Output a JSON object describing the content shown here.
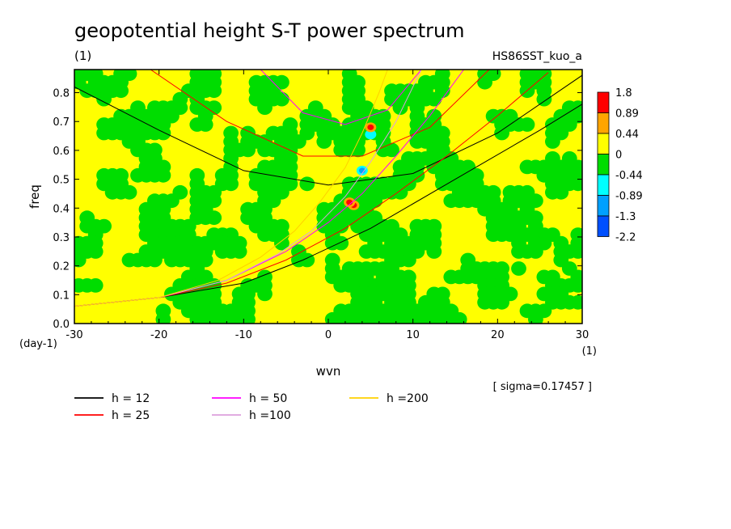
{
  "chart_data": {
    "type": "heatmap",
    "title": "geopotential height S-T power spectrum",
    "subtitle_left": "(1)",
    "subtitle_right": "HS86SST_kuo_a",
    "xlabel": "wvn",
    "ylabel": "freq",
    "x_unit": "(1)",
    "y_unit": "(day-1)",
    "xlim": [
      -30,
      30
    ],
    "ylim": [
      0,
      0.88
    ],
    "x_ticks": [
      "-30",
      "-20",
      "-10",
      "0",
      "10",
      "20",
      "30"
    ],
    "x_tick_values": [
      -30,
      -20,
      -10,
      0,
      10,
      20,
      30
    ],
    "y_ticks": [
      "0.0",
      "0.1",
      "0.2",
      "0.3",
      "0.4",
      "0.5",
      "0.6",
      "0.7",
      "0.8"
    ],
    "y_tick_values": [
      0.0,
      0.1,
      0.2,
      0.3,
      0.4,
      0.5,
      0.6,
      0.7,
      0.8
    ],
    "colorbar": {
      "labels": [
        "1.8",
        "0.89",
        "0.44",
        "0",
        "-0.44",
        "-0.89",
        "-1.3",
        "-2.2"
      ],
      "colors": [
        "#ff0000",
        "#ffa500",
        "#ffff00",
        "#00dd00",
        "#00ffff",
        "#00a0ff",
        "#0050ff"
      ]
    },
    "note": "[ sigma=0.17457 ]",
    "legend": [
      {
        "label": "h = 12",
        "color": "#000000"
      },
      {
        "label": "h = 25",
        "color": "#ff0000"
      },
      {
        "label": "h = 50",
        "color": "#ff00ff"
      },
      {
        "label": "h =100",
        "color": "#dda0dd"
      },
      {
        "label": "h =200",
        "color": "#ffd000"
      }
    ],
    "dispersion_curves": [
      {
        "h": 12,
        "color": "#000000",
        "points": [
          [
            -30,
            0.06
          ],
          [
            -20,
            0.09
          ],
          [
            -10,
            0.14
          ],
          [
            -3,
            0.22
          ],
          [
            5,
            0.33
          ],
          [
            15,
            0.5
          ],
          [
            25,
            0.67
          ],
          [
            30,
            0.76
          ]
        ]
      },
      {
        "h": 12,
        "color": "#000000",
        "points": [
          [
            -30,
            0.82
          ],
          [
            -20,
            0.67
          ],
          [
            -10,
            0.53
          ],
          [
            0,
            0.48
          ],
          [
            10,
            0.52
          ],
          [
            20,
            0.66
          ],
          [
            30,
            0.86
          ]
        ]
      },
      {
        "h": 25,
        "color": "#ff0000",
        "points": [
          [
            -30,
            0.06
          ],
          [
            -20,
            0.09
          ],
          [
            -12,
            0.14
          ],
          [
            -5,
            0.22
          ],
          [
            2,
            0.33
          ],
          [
            8,
            0.45
          ],
          [
            14,
            0.58
          ],
          [
            20,
            0.72
          ],
          [
            26,
            0.87
          ]
        ]
      },
      {
        "h": 25,
        "color": "#ff0000",
        "points": [
          [
            -21,
            0.88
          ],
          [
            -12,
            0.7
          ],
          [
            -3,
            0.58
          ],
          [
            4,
            0.58
          ],
          [
            12,
            0.68
          ],
          [
            19,
            0.88
          ]
        ]
      },
      {
        "h": 50,
        "color": "#ff00ff",
        "points": [
          [
            -30,
            0.06
          ],
          [
            -20,
            0.09
          ],
          [
            -12,
            0.15
          ],
          [
            -5,
            0.25
          ],
          [
            0,
            0.35
          ],
          [
            4,
            0.45
          ],
          [
            8,
            0.58
          ],
          [
            12,
            0.72
          ],
          [
            16,
            0.88
          ]
        ]
      },
      {
        "h": 50,
        "color": "#ff00ff",
        "points": [
          [
            -8,
            0.88
          ],
          [
            -3,
            0.73
          ],
          [
            2,
            0.69
          ],
          [
            7,
            0.74
          ],
          [
            11,
            0.88
          ]
        ]
      },
      {
        "h": 100,
        "color": "#dda0dd",
        "points": [
          [
            -30,
            0.06
          ],
          [
            -20,
            0.09
          ],
          [
            -12,
            0.15
          ],
          [
            -6,
            0.24
          ],
          [
            -2,
            0.32
          ],
          [
            2,
            0.44
          ],
          [
            5,
            0.56
          ],
          [
            8,
            0.7
          ],
          [
            11,
            0.88
          ]
        ]
      },
      {
        "h": 200,
        "color": "#ffd000",
        "points": [
          [
            -30,
            0.06
          ],
          [
            -20,
            0.09
          ],
          [
            -13,
            0.15
          ],
          [
            -8,
            0.23
          ],
          [
            -4,
            0.32
          ],
          [
            -1,
            0.42
          ],
          [
            2,
            0.54
          ],
          [
            4,
            0.66
          ],
          [
            6,
            0.8
          ],
          [
            7,
            0.88
          ]
        ]
      }
    ],
    "spots": [
      {
        "x": 3.0,
        "y": 0.41,
        "value": 1.8
      },
      {
        "x": 2.5,
        "y": 0.42,
        "value": 0.89
      },
      {
        "x": 4.0,
        "y": 0.53,
        "value": -1.3
      },
      {
        "x": 5.0,
        "y": 0.655,
        "value": -0.89
      },
      {
        "x": 5.0,
        "y": 0.68,
        "value": 0.89
      }
    ]
  }
}
